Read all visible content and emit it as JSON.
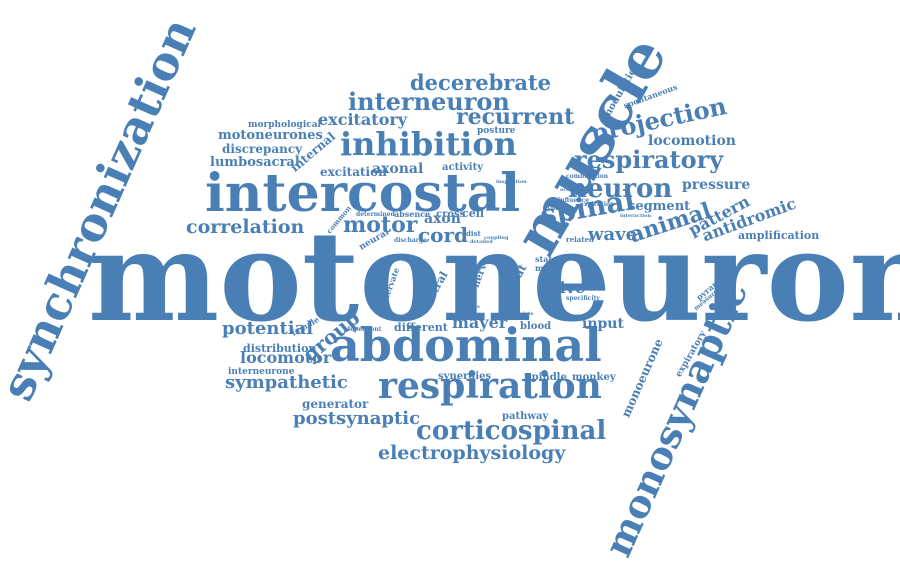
{
  "colors": {
    "word": "#4a7fb5",
    "background": "#ffffff"
  },
  "words": [
    {
      "text": "motoneuron"
    },
    {
      "text": "synchronization"
    },
    {
      "text": "monosynaptic"
    },
    {
      "text": "muscle"
    },
    {
      "text": "intercostal"
    },
    {
      "text": "abdominal"
    },
    {
      "text": "respiration"
    },
    {
      "text": "inhibition"
    },
    {
      "text": "interneuron"
    },
    {
      "text": "respiratory"
    },
    {
      "text": "corticospinal"
    },
    {
      "text": "electrophysiology"
    },
    {
      "text": "decerebrate"
    },
    {
      "text": "recurrent"
    },
    {
      "text": "excitatory"
    },
    {
      "text": "projection"
    },
    {
      "text": "neuron"
    },
    {
      "text": "spinal"
    },
    {
      "text": "correlation"
    },
    {
      "text": "motor"
    },
    {
      "text": "cord"
    },
    {
      "text": "wave"
    },
    {
      "text": "animal"
    },
    {
      "text": "pattern"
    },
    {
      "text": "antidromic"
    },
    {
      "text": "sympathetic"
    },
    {
      "text": "postsynaptic"
    },
    {
      "text": "potential"
    },
    {
      "text": "group"
    },
    {
      "text": "mayer"
    },
    {
      "text": "drive"
    },
    {
      "text": "input"
    },
    {
      "text": "locomotor"
    },
    {
      "text": "pressure"
    },
    {
      "text": "segment"
    },
    {
      "text": "locomotion"
    },
    {
      "text": "motoneurones"
    },
    {
      "text": "discrepancy"
    },
    {
      "text": "lumbosacral"
    },
    {
      "text": "morphological"
    },
    {
      "text": "axonal"
    },
    {
      "text": "axon"
    },
    {
      "text": "excitation"
    },
    {
      "text": "internal"
    },
    {
      "text": "activity"
    },
    {
      "text": "posture"
    },
    {
      "text": "cell"
    },
    {
      "text": "cross"
    },
    {
      "text": "distribution"
    },
    {
      "text": "generator"
    },
    {
      "text": "interneurone"
    },
    {
      "text": "synergies"
    },
    {
      "text": "spindle"
    },
    {
      "text": "monkey"
    },
    {
      "text": "pathway"
    },
    {
      "text": "monoeurone"
    },
    {
      "text": "modulation"
    },
    {
      "text": "spontaneous"
    },
    {
      "text": "amplification"
    },
    {
      "text": "different"
    },
    {
      "text": "blood"
    },
    {
      "text": "central"
    },
    {
      "text": "neural"
    },
    {
      "text": "female"
    },
    {
      "text": "cat"
    },
    {
      "text": "nerve"
    },
    {
      "text": "state"
    },
    {
      "text": "male"
    },
    {
      "text": "common"
    },
    {
      "text": "absence"
    },
    {
      "text": "discharge"
    },
    {
      "text": "dependent"
    },
    {
      "text": "innervate"
    },
    {
      "text": "determined"
    },
    {
      "text": "expiratory"
    },
    {
      "text": "pyramidal"
    },
    {
      "text": "measurement"
    },
    {
      "text": "related"
    },
    {
      "text": "expiration"
    },
    {
      "text": "synergy"
    },
    {
      "text": "influence"
    },
    {
      "text": "combination"
    },
    {
      "text": "occurrence"
    },
    {
      "text": "interaction"
    },
    {
      "text": "specificity"
    },
    {
      "text": "complete"
    },
    {
      "text": "dist"
    },
    {
      "text": "strong"
    },
    {
      "text": "detailed"
    },
    {
      "text": "effect"
    },
    {
      "text": "nucleus"
    },
    {
      "text": "inspiration"
    },
    {
      "text": "coupling"
    }
  ]
}
